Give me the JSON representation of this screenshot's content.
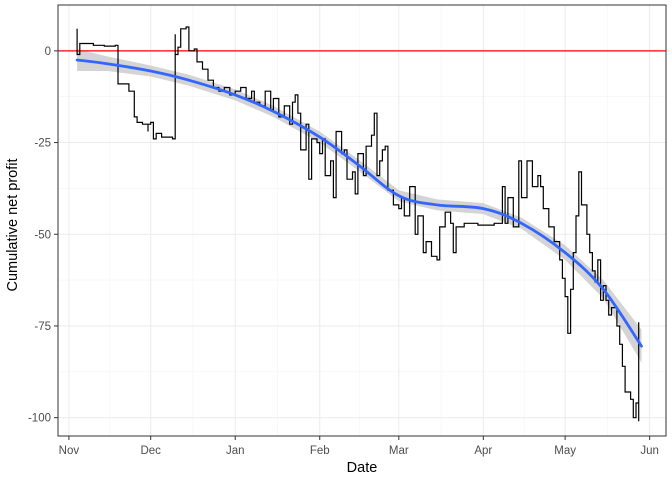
{
  "chart_data": {
    "type": "line",
    "title": "",
    "xlabel": "Date",
    "ylabel": "Cumulative net profit",
    "x_axis_type": "date",
    "xlim": [
      "2023-10-28",
      "2024-06-07"
    ],
    "ylim": [
      -105,
      12.5
    ],
    "x_ticks": [
      {
        "date": "2023-11-01",
        "label": "Nov"
      },
      {
        "date": "2023-12-01",
        "label": "Dec"
      },
      {
        "date": "2024-01-01",
        "label": "Jan"
      },
      {
        "date": "2024-02-01",
        "label": "Feb"
      },
      {
        "date": "2024-03-01",
        "label": "Mar"
      },
      {
        "date": "2024-04-01",
        "label": "Apr"
      },
      {
        "date": "2024-05-01",
        "label": "May"
      },
      {
        "date": "2024-06-01",
        "label": "Jun"
      }
    ],
    "y_ticks": [
      0,
      -25,
      -50,
      -75,
      -100
    ],
    "y_tick_labels": [
      "0",
      "-25",
      "-50",
      "-75",
      "-100"
    ],
    "grid": true,
    "legend": "none",
    "reference_line": {
      "y": 0,
      "color": "#ff0000"
    },
    "colors": {
      "profit_line": "#000000",
      "smooth_line": "#3366ff",
      "confidence_band": "#cccccc",
      "grid_major": "#ebebeb",
      "grid_minor": "#f4f4f4",
      "panel_border": "#333333"
    },
    "series": [
      {
        "style": "step",
        "points": [
          [
            "2023-11-04",
            6
          ],
          [
            "2023-11-04",
            -1
          ],
          [
            "2023-11-05",
            2
          ],
          [
            "2023-11-10",
            1.5
          ],
          [
            "2023-11-14",
            1.3
          ],
          [
            "2023-11-18",
            1.5
          ],
          [
            "2023-11-19",
            -9
          ],
          [
            "2023-11-23",
            -11
          ],
          [
            "2023-11-25",
            -14
          ],
          [
            "2023-11-25",
            -18
          ],
          [
            "2023-11-26",
            -19.5
          ],
          [
            "2023-11-28",
            -20
          ],
          [
            "2023-11-30",
            -22
          ],
          [
            "2023-11-30",
            -20
          ],
          [
            "2023-12-01",
            -19.5
          ],
          [
            "2023-12-02",
            -24
          ],
          [
            "2023-12-03",
            -22.5
          ],
          [
            "2023-12-05",
            -23.5
          ],
          [
            "2023-12-09",
            -24
          ],
          [
            "2023-12-10",
            4.5
          ],
          [
            "2023-12-10",
            -1
          ],
          [
            "2023-12-11",
            1
          ],
          [
            "2023-12-12",
            6
          ],
          [
            "2023-12-14",
            6.5
          ],
          [
            "2023-12-15",
            0
          ],
          [
            "2023-12-17",
            0.5
          ],
          [
            "2023-12-18",
            -3
          ],
          [
            "2023-12-20",
            -5
          ],
          [
            "2023-12-22",
            -8
          ],
          [
            "2023-12-24",
            -10
          ],
          [
            "2023-12-26",
            -11
          ],
          [
            "2023-12-28",
            -10
          ],
          [
            "2023-12-30",
            -12
          ],
          [
            "2024-01-01",
            -11
          ],
          [
            "2024-01-03",
            -10
          ],
          [
            "2024-01-05",
            -13
          ],
          [
            "2024-01-07",
            -11
          ],
          [
            "2024-01-08",
            -14
          ],
          [
            "2024-01-10",
            -15
          ],
          [
            "2024-01-12",
            -11
          ],
          [
            "2024-01-14",
            -16
          ],
          [
            "2024-01-15",
            -13
          ],
          [
            "2024-01-17",
            -18
          ],
          [
            "2024-01-19",
            -15
          ],
          [
            "2024-01-21",
            -20
          ],
          [
            "2024-01-22",
            -14
          ],
          [
            "2024-01-23",
            -12
          ],
          [
            "2024-01-24",
            -17
          ],
          [
            "2024-01-25",
            -27
          ],
          [
            "2024-01-27",
            -20
          ],
          [
            "2024-01-28",
            -35
          ],
          [
            "2024-01-29",
            -24
          ],
          [
            "2024-01-31",
            -25
          ],
          [
            "2024-02-01",
            -28
          ],
          [
            "2024-02-02",
            -24
          ],
          [
            "2024-02-03",
            -34
          ],
          [
            "2024-02-05",
            -30
          ],
          [
            "2024-02-06",
            -40
          ],
          [
            "2024-02-07",
            -22
          ],
          [
            "2024-02-09",
            -28
          ],
          [
            "2024-02-10",
            -27
          ],
          [
            "2024-02-11",
            -35
          ],
          [
            "2024-02-13",
            -33
          ],
          [
            "2024-02-14",
            -39
          ],
          [
            "2024-02-15",
            -28
          ],
          [
            "2024-02-17",
            -34
          ],
          [
            "2024-02-18",
            -26
          ],
          [
            "2024-02-20",
            -23
          ],
          [
            "2024-02-21",
            -17
          ],
          [
            "2024-02-22",
            -34
          ],
          [
            "2024-02-23",
            -30
          ],
          [
            "2024-02-24",
            -27
          ],
          [
            "2024-02-25",
            -26
          ],
          [
            "2024-02-26",
            -38
          ],
          [
            "2024-02-28",
            -42
          ],
          [
            "2024-03-01",
            -43
          ],
          [
            "2024-03-02",
            -40
          ],
          [
            "2024-03-03",
            -45
          ],
          [
            "2024-03-05",
            -37
          ],
          [
            "2024-03-07",
            -50
          ],
          [
            "2024-03-08",
            -45
          ],
          [
            "2024-03-10",
            -55
          ],
          [
            "2024-03-11",
            -52
          ],
          [
            "2024-03-13",
            -56
          ],
          [
            "2024-03-15",
            -57
          ],
          [
            "2024-03-16",
            -48
          ],
          [
            "2024-03-18",
            -44
          ],
          [
            "2024-03-20",
            -47
          ],
          [
            "2024-03-21",
            -55
          ],
          [
            "2024-03-22",
            -48
          ],
          [
            "2024-03-25",
            -47
          ],
          [
            "2024-03-30",
            -47.5
          ],
          [
            "2024-04-05",
            -47
          ],
          [
            "2024-04-08",
            -37
          ],
          [
            "2024-04-09",
            -47
          ],
          [
            "2024-04-10",
            -40
          ],
          [
            "2024-04-12",
            -48
          ],
          [
            "2024-04-14",
            -30
          ],
          [
            "2024-04-15",
            -40
          ],
          [
            "2024-04-17",
            -30
          ],
          [
            "2024-04-19",
            -37
          ],
          [
            "2024-04-21",
            -34
          ],
          [
            "2024-04-22",
            -37
          ],
          [
            "2024-04-23",
            -43
          ],
          [
            "2024-04-25",
            -48
          ],
          [
            "2024-04-27",
            -52
          ],
          [
            "2024-04-29",
            -57
          ],
          [
            "2024-04-30",
            -62
          ],
          [
            "2024-05-01",
            -67
          ],
          [
            "2024-05-02",
            -77
          ],
          [
            "2024-05-03",
            -65
          ],
          [
            "2024-05-04",
            -55
          ],
          [
            "2024-05-05",
            -45
          ],
          [
            "2024-05-06",
            -33
          ],
          [
            "2024-05-07",
            -42
          ],
          [
            "2024-05-09",
            -50
          ],
          [
            "2024-05-10",
            -55
          ],
          [
            "2024-05-11",
            -60
          ],
          [
            "2024-05-12",
            -63
          ],
          [
            "2024-05-13",
            -57
          ],
          [
            "2024-05-14",
            -68
          ],
          [
            "2024-05-15",
            -64
          ],
          [
            "2024-05-16",
            -68
          ],
          [
            "2024-05-17",
            -72
          ],
          [
            "2024-05-18",
            -70
          ],
          [
            "2024-05-20",
            -75
          ],
          [
            "2024-05-21",
            -80
          ],
          [
            "2024-05-22",
            -86
          ],
          [
            "2024-05-23",
            -93
          ],
          [
            "2024-05-25",
            -95
          ],
          [
            "2024-05-26",
            -100
          ],
          [
            "2024-05-27",
            -96
          ],
          [
            "2024-05-28",
            -74
          ],
          [
            "2024-05-28",
            -101
          ]
        ]
      },
      {
        "style": "smooth",
        "points": [
          [
            "2023-11-04",
            -2.5
          ],
          [
            "2023-11-15",
            -3.5
          ],
          [
            "2023-12-01",
            -5.5
          ],
          [
            "2023-12-15",
            -8
          ],
          [
            "2024-01-01",
            -12
          ],
          [
            "2024-01-15",
            -16.5
          ],
          [
            "2024-02-01",
            -23.5
          ],
          [
            "2024-02-15",
            -31
          ],
          [
            "2024-03-01",
            -39.5
          ],
          [
            "2024-03-15",
            -42
          ],
          [
            "2024-04-01",
            -43
          ],
          [
            "2024-04-15",
            -47
          ],
          [
            "2024-05-01",
            -55
          ],
          [
            "2024-05-15",
            -65
          ],
          [
            "2024-05-29",
            -80.5
          ]
        ],
        "band": [
          [
            -5.5,
            0.5
          ],
          [
            -5.5,
            -1.5
          ],
          [
            -7,
            -4
          ],
          [
            -9.5,
            -6.5
          ],
          [
            -13.5,
            -10.5
          ],
          [
            -18,
            -15
          ],
          [
            -25,
            -22
          ],
          [
            -32.5,
            -29.5
          ],
          [
            -41,
            -38
          ],
          [
            -43.5,
            -40.5
          ],
          [
            -44.5,
            -41.5
          ],
          [
            -48.5,
            -45.5
          ],
          [
            -57,
            -53
          ],
          [
            -67.5,
            -62.5
          ],
          [
            -85,
            -76
          ]
        ]
      }
    ]
  }
}
